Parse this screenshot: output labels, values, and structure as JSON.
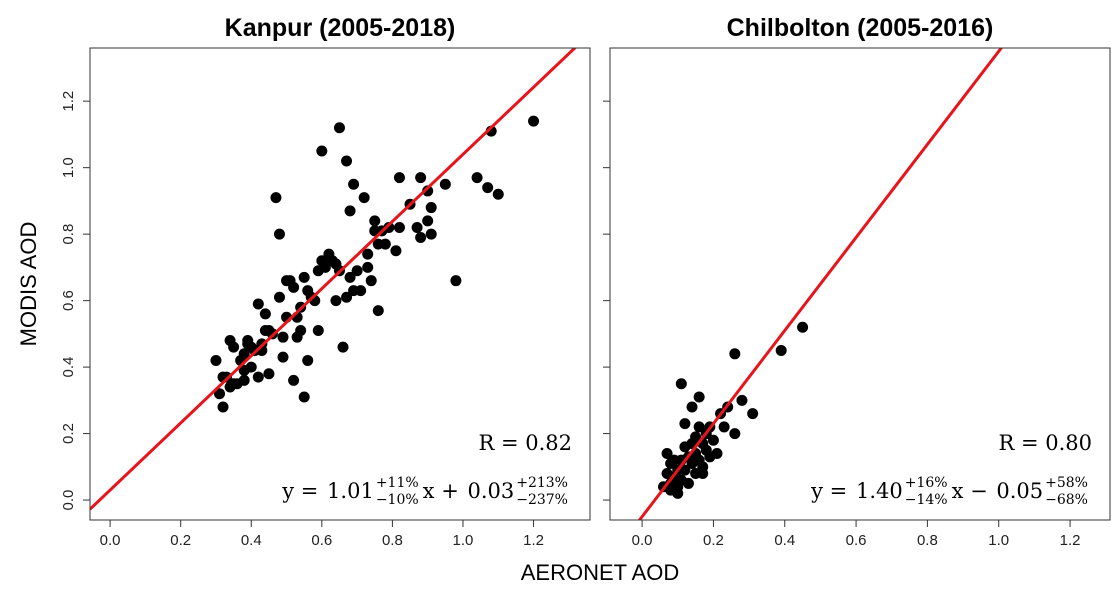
{
  "xlabel": "AERONET AOD",
  "ylabel": "MODIS AOD",
  "chart_data": [
    {
      "type": "scatter",
      "title": "Kanpur (2005-2018)",
      "color": "#000000",
      "xlim": [
        -0.057,
        1.36
      ],
      "ylim": [
        -0.06,
        1.36
      ],
      "xticks": [
        {
          "value": 0,
          "label": "0.0"
        },
        0.2,
        0.4,
        0.6,
        0.8,
        {
          "value": 1,
          "label": "1.0"
        },
        1.2
      ],
      "yticks": [
        {
          "value": 0,
          "label": "0.0"
        },
        0.2,
        0.4,
        0.6,
        0.8,
        {
          "value": 1,
          "label": "1.0"
        },
        1.2
      ],
      "fit": {
        "slope": 1.01,
        "intercept": 0.03,
        "color": "#e8141b"
      },
      "annotations": {
        "r": "R = 0.82",
        "lhs": "y = ",
        "slope": "1.01",
        "slope_up": "+11%",
        "slope_dn": "−10%",
        "mid": "x + ",
        "intercept": "0.03",
        "intercept_up": "+213%",
        "intercept_dn": "−237%"
      },
      "x": [
        0.3,
        0.31,
        0.32,
        0.32,
        0.33,
        0.34,
        0.34,
        0.35,
        0.35,
        0.36,
        0.37,
        0.38,
        0.38,
        0.38,
        0.39,
        0.39,
        0.4,
        0.4,
        0.41,
        0.42,
        0.42,
        0.43,
        0.43,
        0.44,
        0.44,
        0.45,
        0.45,
        0.46,
        0.47,
        0.48,
        0.48,
        0.49,
        0.49,
        0.5,
        0.5,
        0.51,
        0.52,
        0.52,
        0.53,
        0.53,
        0.54,
        0.54,
        0.55,
        0.55,
        0.56,
        0.56,
        0.57,
        0.58,
        0.59,
        0.59,
        0.6,
        0.6,
        0.61,
        0.62,
        0.63,
        0.64,
        0.64,
        0.65,
        0.65,
        0.66,
        0.67,
        0.67,
        0.68,
        0.68,
        0.69,
        0.69,
        0.7,
        0.71,
        0.72,
        0.73,
        0.73,
        0.74,
        0.75,
        0.75,
        0.76,
        0.76,
        0.77,
        0.78,
        0.79,
        0.81,
        0.82,
        0.82,
        0.85,
        0.87,
        0.88,
        0.88,
        0.9,
        0.9,
        0.91,
        0.91,
        0.95,
        0.98,
        1.04,
        1.07,
        1.08,
        1.1,
        1.2
      ],
      "values": [
        0.42,
        0.32,
        0.28,
        0.37,
        0.37,
        0.34,
        0.48,
        0.46,
        0.35,
        0.35,
        0.42,
        0.44,
        0.36,
        0.39,
        0.48,
        0.47,
        0.46,
        0.4,
        0.45,
        0.37,
        0.59,
        0.45,
        0.47,
        0.51,
        0.56,
        0.38,
        0.51,
        0.5,
        0.91,
        0.8,
        0.61,
        0.43,
        0.49,
        0.66,
        0.55,
        0.66,
        0.36,
        0.64,
        0.55,
        0.49,
        0.51,
        0.58,
        0.31,
        0.67,
        0.63,
        0.42,
        0.61,
        0.6,
        0.51,
        0.69,
        1.05,
        0.72,
        0.7,
        0.74,
        0.72,
        0.6,
        0.71,
        1.12,
        0.69,
        0.46,
        0.61,
        1.02,
        0.87,
        0.67,
        0.95,
        0.63,
        0.69,
        0.63,
        0.91,
        0.7,
        0.74,
        0.66,
        0.81,
        0.84,
        0.77,
        0.57,
        0.81,
        0.77,
        0.82,
        0.75,
        0.97,
        0.82,
        0.89,
        0.82,
        0.79,
        0.97,
        0.84,
        0.93,
        0.8,
        0.88,
        0.95,
        0.66,
        0.97,
        0.94,
        1.11,
        0.92,
        1.14
      ]
    },
    {
      "type": "scatter",
      "title": "Chilbolton (2005-2016)",
      "color": "#000000",
      "xlim": [
        -0.09,
        1.312
      ],
      "ylim": [
        -0.06,
        1.36
      ],
      "xticks": [
        {
          "value": 0,
          "label": "0.0"
        },
        0.2,
        0.4,
        0.6,
        0.8,
        {
          "value": 1,
          "label": "1.0"
        },
        1.2
      ],
      "yticks": [
        {
          "value": 0,
          "label": "0.0"
        },
        0.2,
        0.4,
        0.6,
        0.8,
        {
          "value": 1,
          "label": "1.0"
        },
        1.2
      ],
      "fit": {
        "slope": 1.4,
        "intercept": -0.05,
        "color": "#e8141b"
      },
      "annotations": {
        "r": "R = 0.80",
        "lhs": "y = ",
        "slope": "1.40",
        "slope_up": "+16%",
        "slope_dn": "−14%",
        "mid": "x − ",
        "intercept": "0.05",
        "intercept_up": "+58%",
        "intercept_dn": "−68%"
      },
      "x": [
        0.06,
        0.07,
        0.07,
        0.08,
        0.08,
        0.08,
        0.09,
        0.09,
        0.1,
        0.1,
        0.1,
        0.11,
        0.11,
        0.11,
        0.12,
        0.12,
        0.12,
        0.13,
        0.13,
        0.14,
        0.14,
        0.14,
        0.15,
        0.15,
        0.15,
        0.16,
        0.16,
        0.16,
        0.17,
        0.17,
        0.17,
        0.18,
        0.18,
        0.19,
        0.19,
        0.2,
        0.21,
        0.22,
        0.23,
        0.24,
        0.26,
        0.26,
        0.28,
        0.31,
        0.39,
        0.45
      ],
      "values": [
        0.04,
        0.14,
        0.08,
        0.11,
        0.05,
        0.03,
        0.12,
        0.07,
        0.09,
        0.04,
        0.02,
        0.35,
        0.12,
        0.06,
        0.23,
        0.16,
        0.09,
        0.13,
        0.05,
        0.17,
        0.28,
        0.11,
        0.14,
        0.08,
        0.19,
        0.31,
        0.22,
        0.12,
        0.17,
        0.1,
        0.08,
        0.2,
        0.15,
        0.22,
        0.13,
        0.18,
        0.14,
        0.26,
        0.22,
        0.28,
        0.44,
        0.2,
        0.3,
        0.26,
        0.45,
        0.52
      ]
    }
  ]
}
